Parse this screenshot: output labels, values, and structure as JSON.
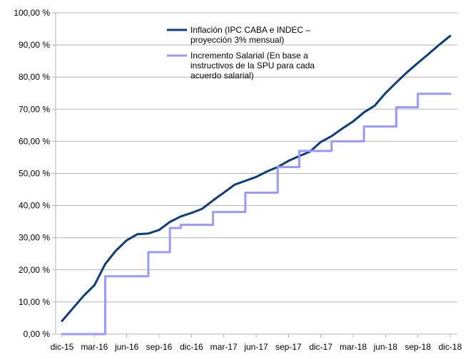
{
  "chart_data": {
    "type": "line",
    "title": "",
    "xlabel": "",
    "ylabel": "",
    "ylim": [
      0,
      100
    ],
    "yticks": [
      0,
      10,
      20,
      30,
      40,
      50,
      60,
      70,
      80,
      90,
      100
    ],
    "ytick_labels": [
      "0,00 %",
      "10,00 %",
      "20,00 %",
      "30,00 %",
      "40,00 %",
      "50,00 %",
      "60,00 %",
      "70,00 %",
      "80,00 %",
      "90,00 %",
      "100,00 %"
    ],
    "x": [
      "dic-15",
      "ene-16",
      "feb-16",
      "mar-16",
      "abr-16",
      "may-16",
      "jun-16",
      "jul-16",
      "ago-16",
      "sep-16",
      "oct-16",
      "nov-16",
      "dic-16",
      "ene-17",
      "feb-17",
      "mar-17",
      "abr-17",
      "may-17",
      "jun-17",
      "jul-17",
      "ago-17",
      "sep-17",
      "oct-17",
      "nov-17",
      "dic-17",
      "ene-18",
      "feb-18",
      "mar-18",
      "abr-18",
      "may-18",
      "jun-18",
      "jul-18",
      "ago-18",
      "sep-18",
      "oct-18",
      "nov-18",
      "dic-18"
    ],
    "xtick_labels": [
      {
        "index": 0,
        "label": "dic-15"
      },
      {
        "index": 3,
        "label": "mar-16"
      },
      {
        "index": 6,
        "label": "jun-16"
      },
      {
        "index": 9,
        "label": "sep-16"
      },
      {
        "index": 12,
        "label": "dic-16"
      },
      {
        "index": 15,
        "label": "mar-17"
      },
      {
        "index": 18,
        "label": "jun-17"
      },
      {
        "index": 21,
        "label": "sep-17"
      },
      {
        "index": 24,
        "label": "dic-17"
      },
      {
        "index": 27,
        "label": "mar-18"
      },
      {
        "index": 30,
        "label": "jun-18"
      },
      {
        "index": 33,
        "label": "sep-18"
      },
      {
        "index": 36,
        "label": "dic-18"
      }
    ],
    "grid": "horizontal",
    "legend_position": "top-center",
    "series": [
      {
        "name": "Inflación (IPC CABA e INDEC – proyección 3% mensual)",
        "name_lines": [
          "Inflación (IPC CABA e INDEC –",
          "proyección 3% mensual)"
        ],
        "color": "#0a3d7a",
        "line_width": 3,
        "step": false,
        "values": [
          4.1,
          8.0,
          11.9,
          15.2,
          21.8,
          26.0,
          29.2,
          31.1,
          31.3,
          32.4,
          34.9,
          36.6,
          37.7,
          39.0,
          41.6,
          44.0,
          46.5,
          47.7,
          48.9,
          50.6,
          52.0,
          53.9,
          55.4,
          56.8,
          59.8,
          61.6,
          64.0,
          66.2,
          69.0,
          71.1,
          75.0,
          78.3,
          81.5,
          84.4,
          87.2,
          90.1,
          92.8
        ]
      },
      {
        "name": "Incremento Salarial (En base a instructivos de la SPU para cada acuerdo salarial)",
        "name_lines": [
          "Incremento Salarial (En base a",
          "instructivos de la SPU para cada",
          "acuerdo salarial)"
        ],
        "color": "#9999ff",
        "line_width": 3,
        "step": true,
        "values": [
          0.0,
          0.0,
          0.0,
          0.0,
          18.0,
          18.0,
          18.0,
          18.0,
          25.5,
          25.5,
          33.0,
          34.0,
          34.0,
          34.0,
          38.0,
          38.0,
          38.0,
          44.0,
          44.0,
          44.0,
          52.0,
          52.0,
          57.0,
          57.0,
          57.0,
          60.0,
          60.0,
          60.0,
          64.6,
          64.6,
          64.6,
          70.6,
          70.6,
          74.8,
          74.8,
          74.8,
          74.8
        ]
      }
    ]
  }
}
